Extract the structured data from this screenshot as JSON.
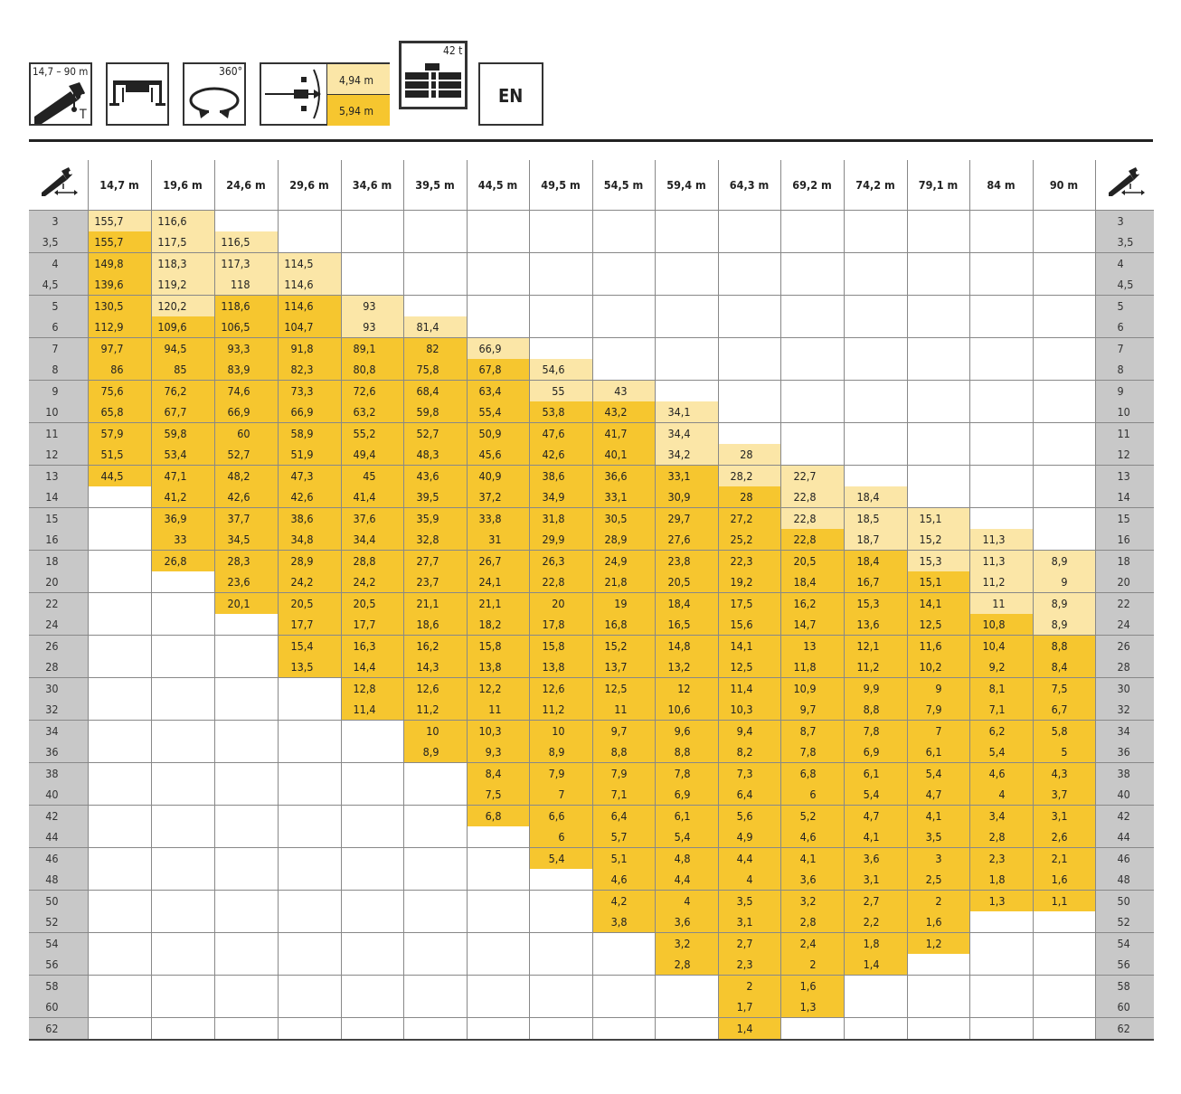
{
  "header": {
    "length_range": "14,7 – 90 m",
    "telescope_mark": "T",
    "slew": "360°",
    "outrigger_1": "4,94 m",
    "outrigger_2": "5,94 m",
    "counterweight": "42 t",
    "language": "EN"
  },
  "colors": {
    "full_load": "#f6c62f",
    "light_load": "#fbe6a7",
    "radius_column": "#c8c8c8"
  },
  "table": {
    "columns": [
      "14,7 m",
      "19,6 m",
      "24,6 m",
      "29,6 m",
      "34,6 m",
      "39,5 m",
      "44,5 m",
      "49,5 m",
      "54,5 m",
      "59,4 m",
      "64,3 m",
      "69,2 m",
      "74,2 m",
      "79,1 m",
      "84 m",
      "90 m"
    ],
    "rows": [
      {
        "r": "3",
        "c": [
          "L155,7",
          "L116,6",
          "",
          "",
          "",
          "",
          "",
          "",
          "",
          "",
          "",
          "",
          "",
          "",
          "",
          ""
        ]
      },
      {
        "r": "3,5",
        "c": [
          "Y155,7",
          "L117,5",
          "L116,5",
          "",
          "",
          "",
          "",
          "",
          "",
          "",
          "",
          "",
          "",
          "",
          "",
          ""
        ]
      },
      {
        "r": "4",
        "c": [
          "Y149,8",
          "L118,3",
          "L117,3",
          "L114,5",
          "",
          "",
          "",
          "",
          "",
          "",
          "",
          "",
          "",
          "",
          "",
          ""
        ]
      },
      {
        "r": "4,5",
        "c": [
          "Y139,6",
          "L119,2",
          "L118",
          "L114,6",
          "",
          "",
          "",
          "",
          "",
          "",
          "",
          "",
          "",
          "",
          "",
          ""
        ]
      },
      {
        "r": "5",
        "c": [
          "Y130,5",
          "L120,2",
          "Y118,6",
          "Y114,6",
          "L93",
          "",
          "",
          "",
          "",
          "",
          "",
          "",
          "",
          "",
          "",
          ""
        ]
      },
      {
        "r": "6",
        "c": [
          "Y112,9",
          "Y109,6",
          "Y106,5",
          "Y104,7",
          "L93",
          "L81,4",
          "",
          "",
          "",
          "",
          "",
          "",
          "",
          "",
          "",
          ""
        ]
      },
      {
        "r": "7",
        "c": [
          "Y97,7",
          "Y94,5",
          "Y93,3",
          "Y91,8",
          "Y89,1",
          "Y82",
          "L66,9",
          "",
          "",
          "",
          "",
          "",
          "",
          "",
          "",
          ""
        ]
      },
      {
        "r": "8",
        "c": [
          "Y86",
          "Y85",
          "Y83,9",
          "Y82,3",
          "Y80,8",
          "Y75,8",
          "Y67,8",
          "L54,6",
          "",
          "",
          "",
          "",
          "",
          "",
          "",
          ""
        ]
      },
      {
        "r": "9",
        "c": [
          "Y75,6",
          "Y76,2",
          "Y74,6",
          "Y73,3",
          "Y72,6",
          "Y68,4",
          "Y63,4",
          "L55",
          "L43",
          "",
          "",
          "",
          "",
          "",
          "",
          ""
        ]
      },
      {
        "r": "10",
        "c": [
          "Y65,8",
          "Y67,7",
          "Y66,9",
          "Y66,9",
          "Y63,2",
          "Y59,8",
          "Y55,4",
          "Y53,8",
          "Y43,2",
          "L34,1",
          "",
          "",
          "",
          "",
          "",
          ""
        ]
      },
      {
        "r": "11",
        "c": [
          "Y57,9",
          "Y59,8",
          "Y60",
          "Y58,9",
          "Y55,2",
          "Y52,7",
          "Y50,9",
          "Y47,6",
          "Y41,7",
          "L34,4",
          "",
          "",
          "",
          "",
          "",
          ""
        ]
      },
      {
        "r": "12",
        "c": [
          "Y51,5",
          "Y53,4",
          "Y52,7",
          "Y51,9",
          "Y49,4",
          "Y48,3",
          "Y45,6",
          "Y42,6",
          "Y40,1",
          "L34,2",
          "L28",
          "",
          "",
          "",
          "",
          ""
        ]
      },
      {
        "r": "13",
        "c": [
          "Y44,5",
          "Y47,1",
          "Y48,2",
          "Y47,3",
          "Y45",
          "Y43,6",
          "Y40,9",
          "Y38,6",
          "Y36,6",
          "Y33,1",
          "L28,2",
          "L22,7",
          "",
          "",
          "",
          ""
        ]
      },
      {
        "r": "14",
        "c": [
          "",
          "Y41,2",
          "Y42,6",
          "Y42,6",
          "Y41,4",
          "Y39,5",
          "Y37,2",
          "Y34,9",
          "Y33,1",
          "Y30,9",
          "Y28",
          "L22,8",
          "L18,4",
          "",
          "",
          ""
        ]
      },
      {
        "r": "15",
        "c": [
          "",
          "Y36,9",
          "Y37,7",
          "Y38,6",
          "Y37,6",
          "Y35,9",
          "Y33,8",
          "Y31,8",
          "Y30,5",
          "Y29,7",
          "Y27,2",
          "L22,8",
          "L18,5",
          "L15,1",
          "",
          ""
        ]
      },
      {
        "r": "16",
        "c": [
          "",
          "Y33",
          "Y34,5",
          "Y34,8",
          "Y34,4",
          "Y32,8",
          "Y31",
          "Y29,9",
          "Y28,9",
          "Y27,6",
          "Y25,2",
          "Y22,8",
          "L18,7",
          "L15,2",
          "L11,3",
          ""
        ]
      },
      {
        "r": "18",
        "c": [
          "",
          "Y26,8",
          "Y28,3",
          "Y28,9",
          "Y28,8",
          "Y27,7",
          "Y26,7",
          "Y26,3",
          "Y24,9",
          "Y23,8",
          "Y22,3",
          "Y20,5",
          "Y18,4",
          "L15,3",
          "L11,3",
          "L8,9"
        ]
      },
      {
        "r": "20",
        "c": [
          "",
          "",
          "Y23,6",
          "Y24,2",
          "Y24,2",
          "Y23,7",
          "Y24,1",
          "Y22,8",
          "Y21,8",
          "Y20,5",
          "Y19,2",
          "Y18,4",
          "Y16,7",
          "Y15,1",
          "L11,2",
          "L9"
        ]
      },
      {
        "r": "22",
        "c": [
          "",
          "",
          "Y20,1",
          "Y20,5",
          "Y20,5",
          "Y21,1",
          "Y21,1",
          "Y20",
          "Y19",
          "Y18,4",
          "Y17,5",
          "Y16,2",
          "Y15,3",
          "Y14,1",
          "L11",
          "L8,9"
        ]
      },
      {
        "r": "24",
        "c": [
          "",
          "",
          "",
          "Y17,7",
          "Y17,7",
          "Y18,6",
          "Y18,2",
          "Y17,8",
          "Y16,8",
          "Y16,5",
          "Y15,6",
          "Y14,7",
          "Y13,6",
          "Y12,5",
          "Y10,8",
          "L8,9"
        ]
      },
      {
        "r": "26",
        "c": [
          "",
          "",
          "",
          "Y15,4",
          "Y16,3",
          "Y16,2",
          "Y15,8",
          "Y15,8",
          "Y15,2",
          "Y14,8",
          "Y14,1",
          "Y13",
          "Y12,1",
          "Y11,6",
          "Y10,4",
          "Y8,8"
        ]
      },
      {
        "r": "28",
        "c": [
          "",
          "",
          "",
          "Y13,5",
          "Y14,4",
          "Y14,3",
          "Y13,8",
          "Y13,8",
          "Y13,7",
          "Y13,2",
          "Y12,5",
          "Y11,8",
          "Y11,2",
          "Y10,2",
          "Y9,2",
          "Y8,4"
        ]
      },
      {
        "r": "30",
        "c": [
          "",
          "",
          "",
          "",
          "Y12,8",
          "Y12,6",
          "Y12,2",
          "Y12,6",
          "Y12,5",
          "Y12",
          "Y11,4",
          "Y10,9",
          "Y9,9",
          "Y9",
          "Y8,1",
          "Y7,5"
        ]
      },
      {
        "r": "32",
        "c": [
          "",
          "",
          "",
          "",
          "Y11,4",
          "Y11,2",
          "Y11",
          "Y11,2",
          "Y11",
          "Y10,6",
          "Y10,3",
          "Y9,7",
          "Y8,8",
          "Y7,9",
          "Y7,1",
          "Y6,7"
        ]
      },
      {
        "r": "34",
        "c": [
          "",
          "",
          "",
          "",
          "",
          "Y10",
          "Y10,3",
          "Y10",
          "Y9,7",
          "Y9,6",
          "Y9,4",
          "Y8,7",
          "Y7,8",
          "Y7",
          "Y6,2",
          "Y5,8"
        ]
      },
      {
        "r": "36",
        "c": [
          "",
          "",
          "",
          "",
          "",
          "Y8,9",
          "Y9,3",
          "Y8,9",
          "Y8,8",
          "Y8,8",
          "Y8,2",
          "Y7,8",
          "Y6,9",
          "Y6,1",
          "Y5,4",
          "Y5"
        ]
      },
      {
        "r": "38",
        "c": [
          "",
          "",
          "",
          "",
          "",
          "",
          "Y8,4",
          "Y7,9",
          "Y7,9",
          "Y7,8",
          "Y7,3",
          "Y6,8",
          "Y6,1",
          "Y5,4",
          "Y4,6",
          "Y4,3"
        ]
      },
      {
        "r": "40",
        "c": [
          "",
          "",
          "",
          "",
          "",
          "",
          "Y7,5",
          "Y7",
          "Y7,1",
          "Y6,9",
          "Y6,4",
          "Y6",
          "Y5,4",
          "Y4,7",
          "Y4",
          "Y3,7"
        ]
      },
      {
        "r": "42",
        "c": [
          "",
          "",
          "",
          "",
          "",
          "",
          "Y6,8",
          "Y6,6",
          "Y6,4",
          "Y6,1",
          "Y5,6",
          "Y5,2",
          "Y4,7",
          "Y4,1",
          "Y3,4",
          "Y3,1"
        ]
      },
      {
        "r": "44",
        "c": [
          "",
          "",
          "",
          "",
          "",
          "",
          "",
          "Y6",
          "Y5,7",
          "Y5,4",
          "Y4,9",
          "Y4,6",
          "Y4,1",
          "Y3,5",
          "Y2,8",
          "Y2,6"
        ]
      },
      {
        "r": "46",
        "c": [
          "",
          "",
          "",
          "",
          "",
          "",
          "",
          "Y5,4",
          "Y5,1",
          "Y4,8",
          "Y4,4",
          "Y4,1",
          "Y3,6",
          "Y3",
          "Y2,3",
          "Y2,1"
        ]
      },
      {
        "r": "48",
        "c": [
          "",
          "",
          "",
          "",
          "",
          "",
          "",
          "",
          "Y4,6",
          "Y4,4",
          "Y4",
          "Y3,6",
          "Y3,1",
          "Y2,5",
          "Y1,8",
          "Y1,6"
        ]
      },
      {
        "r": "50",
        "c": [
          "",
          "",
          "",
          "",
          "",
          "",
          "",
          "",
          "Y4,2",
          "Y4",
          "Y3,5",
          "Y3,2",
          "Y2,7",
          "Y2",
          "Y1,3",
          "Y1,1"
        ]
      },
      {
        "r": "52",
        "c": [
          "",
          "",
          "",
          "",
          "",
          "",
          "",
          "",
          "Y3,8",
          "Y3,6",
          "Y3,1",
          "Y2,8",
          "Y2,2",
          "Y1,6",
          "",
          ""
        ]
      },
      {
        "r": "54",
        "c": [
          "",
          "",
          "",
          "",
          "",
          "",
          "",
          "",
          "",
          "Y3,2",
          "Y2,7",
          "Y2,4",
          "Y1,8",
          "Y1,2",
          "",
          ""
        ]
      },
      {
        "r": "56",
        "c": [
          "",
          "",
          "",
          "",
          "",
          "",
          "",
          "",
          "",
          "Y2,8",
          "Y2,3",
          "Y2",
          "Y1,4",
          "",
          "",
          ""
        ]
      },
      {
        "r": "58",
        "c": [
          "",
          "",
          "",
          "",
          "",
          "",
          "",
          "",
          "",
          "",
          "Y2",
          "Y1,6",
          "",
          "",
          "",
          ""
        ]
      },
      {
        "r": "60",
        "c": [
          "",
          "",
          "",
          "",
          "",
          "",
          "",
          "",
          "",
          "",
          "Y1,7",
          "Y1,3",
          "",
          "",
          "",
          ""
        ]
      },
      {
        "r": "62",
        "c": [
          "",
          "",
          "",
          "",
          "",
          "",
          "",
          "",
          "",
          "",
          "Y1,4",
          "",
          "",
          "",
          "",
          ""
        ]
      }
    ]
  }
}
